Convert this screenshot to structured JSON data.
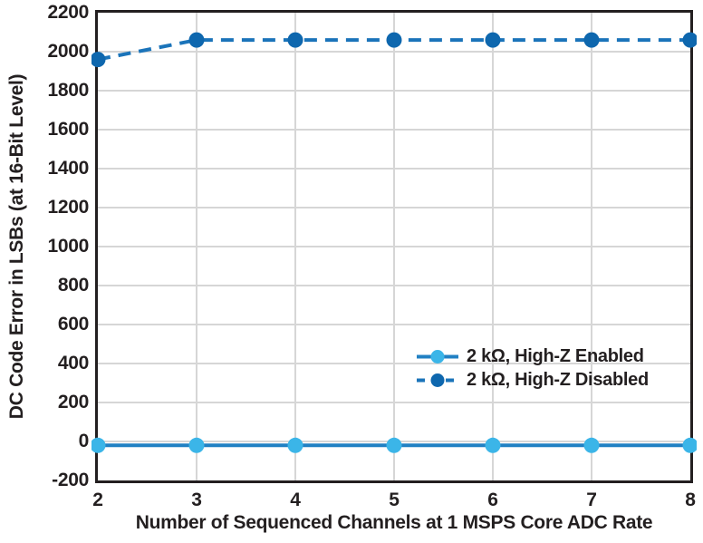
{
  "chart_data": {
    "type": "line",
    "title": "",
    "xlabel": "Number of Sequenced Channels at 1 MSPS Core ADC Rate",
    "ylabel": "DC Code Error in LSBs (at 16-Bit Level)",
    "xlim": [
      2,
      8
    ],
    "ylim": [
      -200,
      2200
    ],
    "xticks": [
      2,
      3,
      4,
      5,
      6,
      7,
      8
    ],
    "yticks": [
      2200,
      2000,
      1800,
      1600,
      1400,
      1200,
      1000,
      800,
      600,
      400,
      200,
      0,
      -200
    ],
    "grid": true,
    "legend_position": "inside-right-lower",
    "x": [
      2,
      3,
      4,
      5,
      6,
      7,
      8
    ],
    "series": [
      {
        "id": "highz-enabled",
        "name": "2 kΩ, High-Z Enabled",
        "style": "solid",
        "line_color": "#2180c3",
        "marker_color": "#3bb5e8",
        "values": [
          -20,
          -20,
          -20,
          -20,
          -20,
          -20,
          -20
        ]
      },
      {
        "id": "highz-disabled",
        "name": "2 kΩ, High-Z Disabled",
        "style": "dashed",
        "line_color": "#1b74ba",
        "marker_color": "#0e67ae",
        "values": [
          1960,
          2060,
          2060,
          2060,
          2060,
          2060,
          2060
        ]
      }
    ],
    "colors": {
      "text": "#231f20",
      "frame": "#231f20",
      "grid": "#d6d6d6",
      "background": "#ffffff"
    }
  }
}
